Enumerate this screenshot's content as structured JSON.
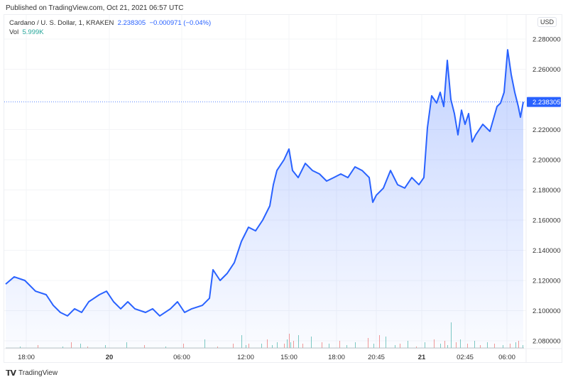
{
  "header": {
    "published": "Published on TradingView.com, Oct 21, 2021 06:57 UTC"
  },
  "legend": {
    "symbol": "Cardano / U. S. Dollar, 1, KRAKEN",
    "price": "2.238305",
    "change": "−0.000971 (−0.04%)",
    "vol_label": "Vol",
    "vol_value": "5.999K"
  },
  "currency": "USD",
  "footer": {
    "brand": "TradingView",
    "logo": "TV"
  },
  "colors": {
    "line": "#2962ff",
    "up": "#26a69a",
    "down": "#ef5350"
  },
  "chart_data": {
    "type": "area",
    "title": "Cardano / U. S. Dollar, 1, KRAKEN",
    "ylim": [
      2.07,
      2.29
    ],
    "y_ticks": [
      "2.280000",
      "2.260000",
      "2.220000",
      "2.200000",
      "2.180000",
      "2.160000",
      "2.140000",
      "2.120000",
      "2.100000",
      "2.080000"
    ],
    "y_tick_values": [
      2.28,
      2.26,
      2.22,
      2.2,
      2.18,
      2.16,
      2.14,
      2.12,
      2.1,
      2.08
    ],
    "x_ticks": [
      {
        "label": "18:00",
        "bar": 29,
        "bold": false
      },
      {
        "label": "20",
        "bar": 146,
        "bold": true
      },
      {
        "label": "06:00",
        "bar": 248,
        "bold": false
      },
      {
        "label": "12:00",
        "bar": 338,
        "bold": false
      },
      {
        "label": "15:00",
        "bar": 399,
        "bold": false
      },
      {
        "label": "18:00",
        "bar": 466,
        "bold": false
      },
      {
        "label": "20:45",
        "bar": 522,
        "bold": false
      },
      {
        "label": "21",
        "bar": 586,
        "bold": true
      },
      {
        "label": "02:45",
        "bar": 647,
        "bold": false
      },
      {
        "label": "06:00",
        "bar": 706,
        "bold": false
      }
    ],
    "last_price": 2.238305,
    "last_price_label": "2.238305",
    "bars": [
      0,
      12,
      27,
      42,
      57,
      67,
      77,
      87,
      97,
      107,
      117,
      132,
      142,
      152,
      162,
      172,
      182,
      197,
      207,
      217,
      232,
      242,
      252,
      262,
      277,
      287,
      292,
      302,
      312,
      322,
      332,
      342,
      352,
      362,
      372,
      377,
      382,
      392,
      399,
      404,
      412,
      422,
      432,
      442,
      452,
      462,
      472,
      482,
      492,
      502,
      512,
      517,
      522,
      532,
      542,
      552,
      562,
      572,
      582,
      589,
      594,
      600,
      607,
      612,
      617,
      622,
      627,
      632,
      637,
      642,
      647,
      652,
      657,
      662,
      672,
      682,
      692,
      697,
      702,
      707,
      712,
      717,
      722,
      725,
      729
    ],
    "prices": [
      2.1176,
      2.1224,
      2.12,
      2.1129,
      2.1106,
      2.1035,
      2.0988,
      2.0965,
      2.1012,
      2.0988,
      2.1059,
      2.1106,
      2.1129,
      2.1059,
      2.1012,
      2.1059,
      2.1012,
      2.0988,
      2.1012,
      2.0965,
      2.1012,
      2.1059,
      2.0988,
      2.1012,
      2.1035,
      2.1082,
      2.1271,
      2.12,
      2.1247,
      2.1318,
      2.1459,
      2.1553,
      2.1529,
      2.16,
      2.1694,
      2.1835,
      2.1929,
      2.2,
      2.2071,
      2.1929,
      2.1882,
      2.1976,
      2.1929,
      2.1906,
      2.1859,
      2.1882,
      2.1906,
      2.1882,
      2.1953,
      2.1929,
      2.1882,
      2.1718,
      2.1765,
      2.1812,
      2.1929,
      2.1835,
      2.1812,
      2.1882,
      2.1835,
      2.1882,
      2.2212,
      2.2424,
      2.2376,
      2.2447,
      2.2353,
      2.2659,
      2.24,
      2.2306,
      2.2165,
      2.2329,
      2.2235,
      2.2306,
      2.2118,
      2.2165,
      2.2235,
      2.2188,
      2.2353,
      2.2376,
      2.2447,
      2.2729,
      2.2565,
      2.2447,
      2.2353,
      2.2282,
      2.2383
    ],
    "volume": {
      "bars": [
        20,
        45,
        80,
        92,
        105,
        115,
        140,
        170,
        195,
        225,
        250,
        280,
        298,
        320,
        332,
        338,
        342,
        360,
        368,
        375,
        382,
        392,
        396,
        399,
        401,
        405,
        412,
        418,
        430,
        445,
        455,
        470,
        480,
        492,
        510,
        518,
        526,
        535,
        548,
        555,
        566,
        578,
        590,
        603,
        612,
        618,
        622,
        627,
        634,
        640,
        650,
        660,
        668,
        678,
        688,
        700,
        710,
        718,
        722,
        728
      ],
      "values": [
        1,
        2,
        1,
        4,
        3,
        1,
        2,
        4,
        2,
        1,
        3,
        6,
        1,
        3,
        9,
        2,
        3,
        3,
        6,
        2,
        4,
        3,
        6,
        10,
        4,
        5,
        9,
        3,
        8,
        4,
        3,
        5,
        2,
        4,
        7,
        3,
        9,
        8,
        2,
        3,
        5,
        1,
        4,
        6,
        3,
        5,
        2,
        18,
        4,
        6,
        3,
        5,
        2,
        4,
        3,
        2,
        3,
        4,
        5,
        2
      ],
      "up": [
        1,
        0,
        1,
        0,
        1,
        0,
        1,
        1,
        0,
        1,
        0,
        1,
        0,
        0,
        1,
        1,
        0,
        1,
        0,
        1,
        1,
        0,
        1,
        0,
        1,
        0,
        1,
        0,
        1,
        0,
        1,
        0,
        1,
        1,
        0,
        1,
        0,
        1,
        1,
        0,
        1,
        0,
        1,
        0,
        1,
        0,
        1,
        1,
        0,
        1,
        0,
        1,
        0,
        1,
        0,
        1,
        0,
        1,
        0,
        1
      ]
    }
  }
}
